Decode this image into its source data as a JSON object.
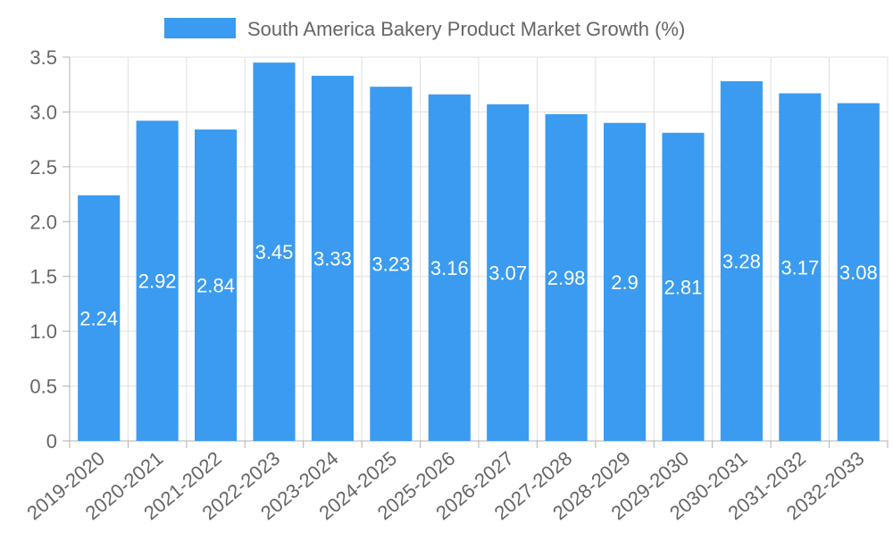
{
  "chart_data": {
    "type": "bar",
    "title": "",
    "xlabel": "",
    "ylabel": "",
    "categories": [
      "2019-2020",
      "2020-2021",
      "2021-2022",
      "2022-2023",
      "2023-2024",
      "2024-2025",
      "2025-2026",
      "2026-2027",
      "2027-2028",
      "2028-2029",
      "2029-2030",
      "2030-2031",
      "2031-2032",
      "2032-2033"
    ],
    "series": [
      {
        "name": "South America Bakery Product Market Growth (%)",
        "values": [
          2.24,
          2.92,
          2.84,
          3.45,
          3.33,
          3.23,
          3.16,
          3.07,
          2.98,
          2.9,
          2.81,
          3.28,
          3.17,
          3.08
        ],
        "color": "#3a9bf0"
      }
    ],
    "data_labels": [
      "2.24",
      "2.92",
      "2.84",
      "3.45",
      "3.33",
      "3.23",
      "3.16",
      "3.07",
      "2.98",
      "2.9",
      "2.81",
      "3.28",
      "3.17",
      "3.08"
    ],
    "ylim": [
      0,
      3.5
    ],
    "y_ticks": [
      0,
      0.5,
      1.0,
      1.5,
      2.0,
      2.5,
      3.0,
      3.5
    ],
    "y_tick_labels": [
      "0",
      "0.5",
      "1.0",
      "1.5",
      "2.0",
      "2.5",
      "3.0",
      "3.5"
    ],
    "grid": true,
    "legend_position": "top-center",
    "data_label_position": "inside-bar-middle"
  }
}
